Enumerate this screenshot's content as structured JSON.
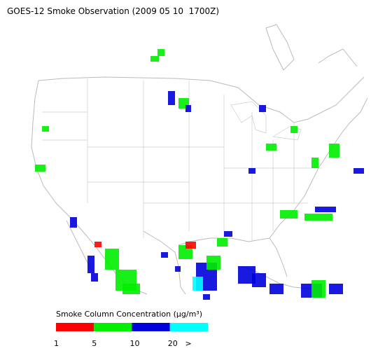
{
  "title": "GOES-12 Smoke Observation (2009 05 10  1700Z)",
  "legend": {
    "title": "Smoke Column Concentration (µg/m³)",
    "bins": [
      {
        "color": "#ff0000"
      },
      {
        "color": "#00ee00"
      },
      {
        "color": "#0000dd"
      },
      {
        "color": "#00ffff"
      }
    ],
    "ticks": [
      1,
      5,
      10,
      20
    ],
    "overflow": ">"
  }
}
